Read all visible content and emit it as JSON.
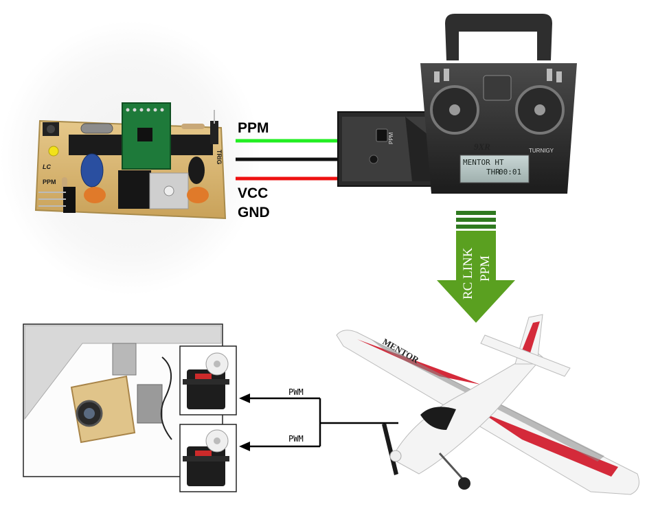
{
  "board": {
    "labels": {
      "ppm": "PPM",
      "brand": "LC",
      "trig": "TRIG"
    }
  },
  "wires": {
    "ppm_label": "PPM",
    "vcc_label": "VCC",
    "gnd_label": "GND",
    "colors": {
      "ppm": "#22ee22",
      "gnd": "#111111",
      "vcc": "#ee1111"
    }
  },
  "transmitter": {
    "model_badge": "9XR",
    "brand": "TURNIGY",
    "screen_line1": "MENTOR HT",
    "screen_line2_prefix": "THR",
    "screen_timer": "00:01",
    "port_label": "PPM"
  },
  "link": {
    "line1": "RC LINK",
    "line2": "PPM",
    "colors": {
      "arrow": "#5aa020",
      "bars": "#2f7a20"
    }
  },
  "servos": {
    "pwm_label_top": "PWM",
    "pwm_label_bottom": "PWM"
  },
  "airplane": {
    "name": "MENTOR",
    "colors": {
      "body": "#f4f4f4",
      "stripe": "#d42a3a",
      "accent": "#8a8a8a"
    }
  }
}
